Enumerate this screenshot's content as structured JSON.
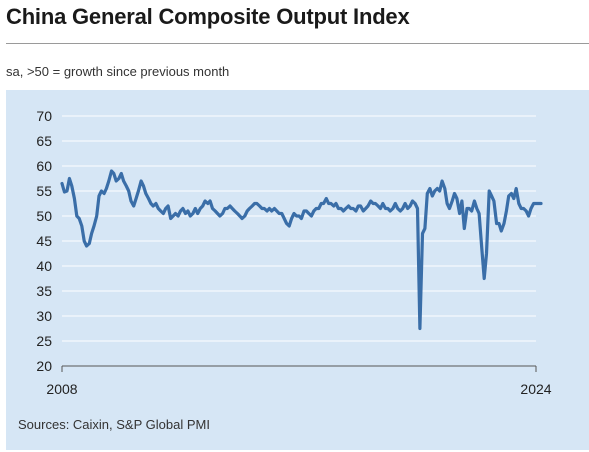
{
  "header": {
    "title": "China General Composite Output Index",
    "subtitle": "sa, >50 = growth since previous month"
  },
  "footer": {
    "source": "Sources: Caixin, S&P Global PMI"
  },
  "chart_data": {
    "type": "line",
    "title": "China General Composite Output Index",
    "subtitle": "sa, >50 = growth since previous month",
    "xlabel": "",
    "ylabel": "",
    "ylim": [
      20,
      70
    ],
    "yticks": [
      20,
      25,
      30,
      35,
      40,
      45,
      50,
      55,
      60,
      65,
      70
    ],
    "xlim": [
      2008.0,
      2024.0
    ],
    "xticks": [
      2008,
      2024
    ],
    "grid": "horizontal",
    "legend": "none",
    "colors": {
      "line": "#3a6ea8",
      "panel": "#d6e6f5",
      "grid": "#ffffff"
    },
    "series": [
      {
        "points": [
          [
            2008.0,
            56.5
          ],
          [
            2008.08,
            54.8
          ],
          [
            2008.17,
            55.0
          ],
          [
            2008.25,
            57.5
          ],
          [
            2008.33,
            56.0
          ],
          [
            2008.42,
            53.5
          ],
          [
            2008.5,
            50.0
          ],
          [
            2008.58,
            49.5
          ],
          [
            2008.67,
            48.0
          ],
          [
            2008.75,
            45.0
          ],
          [
            2008.83,
            44.0
          ],
          [
            2008.92,
            44.5
          ],
          [
            2009.0,
            46.5
          ],
          [
            2009.08,
            48.0
          ],
          [
            2009.17,
            50.0
          ],
          [
            2009.25,
            54.0
          ],
          [
            2009.33,
            55.0
          ],
          [
            2009.42,
            54.5
          ],
          [
            2009.5,
            55.5
          ],
          [
            2009.58,
            57.0
          ],
          [
            2009.67,
            59.0
          ],
          [
            2009.75,
            58.5
          ],
          [
            2009.83,
            57.0
          ],
          [
            2009.92,
            57.5
          ],
          [
            2010.0,
            58.5
          ],
          [
            2010.08,
            57.0
          ],
          [
            2010.17,
            56.0
          ],
          [
            2010.25,
            55.0
          ],
          [
            2010.33,
            53.0
          ],
          [
            2010.42,
            52.0
          ],
          [
            2010.5,
            53.5
          ],
          [
            2010.58,
            55.0
          ],
          [
            2010.67,
            57.0
          ],
          [
            2010.75,
            56.0
          ],
          [
            2010.83,
            54.5
          ],
          [
            2010.92,
            53.5
          ],
          [
            2011.0,
            52.5
          ],
          [
            2011.08,
            52.0
          ],
          [
            2011.17,
            52.5
          ],
          [
            2011.25,
            51.5
          ],
          [
            2011.33,
            51.0
          ],
          [
            2011.42,
            50.5
          ],
          [
            2011.5,
            51.5
          ],
          [
            2011.58,
            52.0
          ],
          [
            2011.67,
            49.5
          ],
          [
            2011.75,
            50.0
          ],
          [
            2011.83,
            50.5
          ],
          [
            2011.92,
            50.0
          ],
          [
            2012.0,
            51.0
          ],
          [
            2012.08,
            51.5
          ],
          [
            2012.17,
            50.5
          ],
          [
            2012.25,
            51.0
          ],
          [
            2012.33,
            50.0
          ],
          [
            2012.42,
            50.5
          ],
          [
            2012.5,
            51.5
          ],
          [
            2012.58,
            50.5
          ],
          [
            2012.67,
            51.5
          ],
          [
            2012.75,
            52.0
          ],
          [
            2012.83,
            53.0
          ],
          [
            2012.92,
            52.5
          ],
          [
            2013.0,
            53.0
          ],
          [
            2013.08,
            51.5
          ],
          [
            2013.17,
            51.0
          ],
          [
            2013.25,
            50.5
          ],
          [
            2013.33,
            50.0
          ],
          [
            2013.42,
            50.5
          ],
          [
            2013.5,
            51.5
          ],
          [
            2013.58,
            51.5
          ],
          [
            2013.67,
            52.0
          ],
          [
            2013.75,
            51.5
          ],
          [
            2013.83,
            51.0
          ],
          [
            2013.92,
            50.5
          ],
          [
            2014.0,
            50.0
          ],
          [
            2014.08,
            49.5
          ],
          [
            2014.17,
            50.0
          ],
          [
            2014.25,
            51.0
          ],
          [
            2014.33,
            51.5
          ],
          [
            2014.42,
            52.0
          ],
          [
            2014.5,
            52.5
          ],
          [
            2014.58,
            52.5
          ],
          [
            2014.67,
            52.0
          ],
          [
            2014.75,
            51.5
          ],
          [
            2014.83,
            51.5
          ],
          [
            2014.92,
            51.0
          ],
          [
            2015.0,
            51.5
          ],
          [
            2015.08,
            51.0
          ],
          [
            2015.17,
            51.5
          ],
          [
            2015.25,
            51.0
          ],
          [
            2015.33,
            50.5
          ],
          [
            2015.42,
            50.5
          ],
          [
            2015.5,
            49.5
          ],
          [
            2015.58,
            48.5
          ],
          [
            2015.67,
            48.0
          ],
          [
            2015.75,
            49.5
          ],
          [
            2015.83,
            50.5
          ],
          [
            2015.92,
            50.0
          ],
          [
            2016.0,
            50.0
          ],
          [
            2016.08,
            49.5
          ],
          [
            2016.17,
            51.0
          ],
          [
            2016.25,
            51.0
          ],
          [
            2016.33,
            50.5
          ],
          [
            2016.42,
            50.0
          ],
          [
            2016.5,
            51.0
          ],
          [
            2016.58,
            51.5
          ],
          [
            2016.67,
            51.5
          ],
          [
            2016.75,
            52.5
          ],
          [
            2016.83,
            52.5
          ],
          [
            2016.92,
            53.5
          ],
          [
            2017.0,
            52.5
          ],
          [
            2017.08,
            52.5
          ],
          [
            2017.17,
            52.0
          ],
          [
            2017.25,
            52.5
          ],
          [
            2017.33,
            51.5
          ],
          [
            2017.42,
            51.5
          ],
          [
            2017.5,
            51.0
          ],
          [
            2017.58,
            51.5
          ],
          [
            2017.67,
            52.0
          ],
          [
            2017.75,
            51.5
          ],
          [
            2017.83,
            51.5
          ],
          [
            2017.92,
            51.0
          ],
          [
            2018.0,
            52.0
          ],
          [
            2018.08,
            52.0
          ],
          [
            2018.17,
            51.0
          ],
          [
            2018.25,
            51.5
          ],
          [
            2018.33,
            52.0
          ],
          [
            2018.42,
            53.0
          ],
          [
            2018.5,
            52.5
          ],
          [
            2018.58,
            52.5
          ],
          [
            2018.67,
            52.0
          ],
          [
            2018.75,
            51.5
          ],
          [
            2018.83,
            52.5
          ],
          [
            2018.92,
            51.5
          ],
          [
            2019.0,
            51.5
          ],
          [
            2019.08,
            51.0
          ],
          [
            2019.17,
            51.5
          ],
          [
            2019.25,
            52.5
          ],
          [
            2019.33,
            51.5
          ],
          [
            2019.42,
            51.0
          ],
          [
            2019.5,
            51.5
          ],
          [
            2019.58,
            52.5
          ],
          [
            2019.67,
            51.5
          ],
          [
            2019.75,
            52.0
          ],
          [
            2019.83,
            53.0
          ],
          [
            2019.92,
            52.5
          ],
          [
            2020.0,
            51.5
          ],
          [
            2020.08,
            27.5
          ],
          [
            2020.17,
            46.5
          ],
          [
            2020.25,
            47.5
          ],
          [
            2020.33,
            54.5
          ],
          [
            2020.42,
            55.5
          ],
          [
            2020.5,
            54.0
          ],
          [
            2020.58,
            55.0
          ],
          [
            2020.67,
            55.5
          ],
          [
            2020.75,
            55.0
          ],
          [
            2020.83,
            57.0
          ],
          [
            2020.92,
            55.5
          ],
          [
            2021.0,
            52.5
          ],
          [
            2021.08,
            51.5
          ],
          [
            2021.17,
            53.0
          ],
          [
            2021.25,
            54.5
          ],
          [
            2021.33,
            53.5
          ],
          [
            2021.42,
            50.5
          ],
          [
            2021.5,
            53.0
          ],
          [
            2021.58,
            47.5
          ],
          [
            2021.67,
            51.5
          ],
          [
            2021.75,
            51.5
          ],
          [
            2021.83,
            51.0
          ],
          [
            2021.92,
            53.0
          ],
          [
            2022.0,
            51.5
          ],
          [
            2022.08,
            50.5
          ],
          [
            2022.17,
            43.5
          ],
          [
            2022.25,
            37.5
          ],
          [
            2022.33,
            42.5
          ],
          [
            2022.42,
            55.0
          ],
          [
            2022.5,
            54.0
          ],
          [
            2022.58,
            53.0
          ],
          [
            2022.67,
            48.5
          ],
          [
            2022.75,
            48.5
          ],
          [
            2022.83,
            47.0
          ],
          [
            2022.92,
            48.5
          ],
          [
            2023.0,
            51.0
          ],
          [
            2023.08,
            54.0
          ],
          [
            2023.17,
            54.5
          ],
          [
            2023.25,
            53.5
          ],
          [
            2023.33,
            55.5
          ],
          [
            2023.42,
            52.5
          ],
          [
            2023.5,
            51.5
          ],
          [
            2023.58,
            51.5
          ],
          [
            2023.67,
            51.0
          ],
          [
            2023.75,
            50.0
          ],
          [
            2023.83,
            51.5
          ],
          [
            2023.92,
            52.5
          ],
          [
            2024.0,
            52.5
          ],
          [
            2024.08,
            52.5
          ],
          [
            2024.17,
            52.5
          ]
        ]
      }
    ]
  }
}
